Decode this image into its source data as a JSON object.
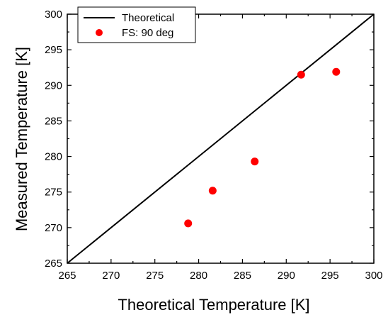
{
  "chart_data": {
    "type": "scatter",
    "title": "",
    "xlabel": "Theoretical Temperature [K]",
    "ylabel": "Measured Temperature [K]",
    "xlim": [
      265,
      300
    ],
    "ylim": [
      265,
      300
    ],
    "xticks": [
      265,
      270,
      275,
      280,
      285,
      290,
      295,
      300
    ],
    "yticks": [
      265,
      270,
      275,
      280,
      285,
      290,
      295,
      300
    ],
    "grid": false,
    "legend_position": "top-left",
    "series": [
      {
        "name": "Theoretical",
        "type": "line",
        "color": "#000000",
        "x": [
          265,
          300
        ],
        "y": [
          265,
          300
        ]
      },
      {
        "name": "FS: 90 deg",
        "type": "scatter",
        "color": "#ff0000",
        "x": [
          278.8,
          281.6,
          286.4,
          291.7,
          295.7
        ],
        "y": [
          270.6,
          275.2,
          279.3,
          291.5,
          291.9
        ]
      }
    ]
  }
}
